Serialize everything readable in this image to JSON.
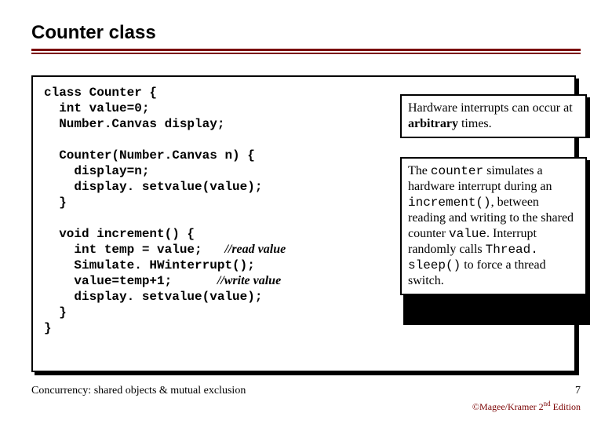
{
  "title": "Counter class",
  "colors": {
    "rule": "#7a0000",
    "text": "#000000",
    "background": "#ffffff",
    "footer_accent": "#7a0000"
  },
  "code": {
    "l1": "class Counter {",
    "l2": "  int value=0;",
    "l3": "  Number.Canvas display;",
    "l4": "",
    "l5": "  Counter(Number.Canvas n) {",
    "l6": "    display=n;",
    "l7": "    display. setvalue(value);",
    "l8": "  }",
    "l9": "",
    "l10": "  void increment() {",
    "l11a": "    int temp = value;   ",
    "l11c": "//read value",
    "l12": "    Simulate. HWinterrupt();",
    "l13a": "    value=temp+1;      ",
    "l13c": "//write value",
    "l14": "    display. setvalue(value);",
    "l15": "  }",
    "l16": "}"
  },
  "side1": {
    "t1": "Hardware interrupts can occur at ",
    "t2": "arbitrary",
    "t3": " times."
  },
  "side2": {
    "t1": "The ",
    "m1": "counter",
    "t2": " simulates a hardware interrupt during an ",
    "m2": "increment()",
    "t3": ", between reading and writing to the shared counter ",
    "m3": "value",
    "t4": ". Interrupt randomly calls ",
    "m4": "Thread. sleep()",
    "t5": " to force a thread switch."
  },
  "footer": {
    "left": "Concurrency: shared objects & mutual exclusion",
    "page": "7",
    "right_pre": "©Magee/Kramer ",
    "right_ed": "2",
    "right_sup": "nd",
    "right_post": " Edition"
  }
}
